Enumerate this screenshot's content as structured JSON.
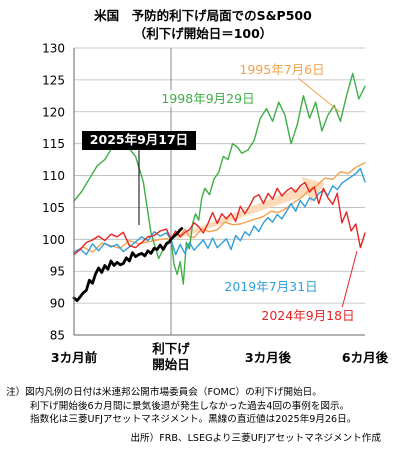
{
  "chart_data": {
    "type": "line",
    "title": "米国　予防的利下げ局面でのS&P500",
    "subtitle": "（利下げ開始日＝100）",
    "ylim": [
      85,
      130
    ],
    "yticks": [
      85,
      90,
      95,
      100,
      105,
      110,
      115,
      120,
      125,
      130
    ],
    "xlim": [
      -63,
      126
    ],
    "xticks": [
      {
        "x": -63,
        "label": "3カ月前"
      },
      {
        "x": 0,
        "label": "利下げ\n開始日"
      },
      {
        "x": 63,
        "label": "3カ月後"
      },
      {
        "x": 126,
        "label": "6カ月後"
      }
    ],
    "grid": "horizontal",
    "series": [
      {
        "name": "1995年7月6日",
        "color": "#f5a04a",
        "width": 1.4,
        "x": [
          -63,
          -57,
          -51,
          -45,
          -39,
          -33,
          -27,
          -21,
          -15,
          -9,
          -3,
          0,
          3,
          6,
          9,
          12,
          15,
          20,
          25,
          30,
          35,
          40,
          45,
          50,
          55,
          60,
          65,
          70,
          75,
          80,
          85,
          90,
          95,
          100,
          105,
          110,
          115,
          120,
          126
        ],
        "y": [
          98.0,
          98.8,
          98.0,
          99.4,
          99.0,
          98.6,
          99.8,
          99.3,
          99.6,
          99.9,
          100.1,
          100.0,
          101.2,
          100.6,
          101.6,
          100.4,
          100.3,
          101.6,
          101.2,
          101.5,
          102.7,
          102.3,
          102.4,
          102.8,
          103.2,
          103.6,
          104.4,
          104.2,
          104.9,
          105.8,
          106.6,
          107.8,
          108.5,
          109.6,
          109.4,
          110.6,
          110.3,
          111.3,
          112.0
        ]
      },
      {
        "name": "1998年9月29日",
        "color": "#3fae45",
        "width": 1.4,
        "x": [
          -63,
          -58,
          -53,
          -48,
          -43,
          -38,
          -33,
          -28,
          -23,
          -18,
          -13,
          -8,
          -3,
          0,
          2,
          4,
          6,
          8,
          10,
          12,
          14,
          16,
          18,
          20,
          22,
          25,
          28,
          31,
          34,
          37,
          40,
          43,
          46,
          50,
          54,
          58,
          62,
          66,
          70,
          74,
          78,
          82,
          86,
          90,
          94,
          98,
          102,
          106,
          110,
          114,
          118,
          122,
          126
        ],
        "y": [
          106.0,
          107.5,
          109.5,
          111.5,
          112.5,
          114.5,
          116.5,
          114.5,
          113.0,
          109.0,
          101.0,
          97.0,
          99.5,
          100.0,
          96.0,
          94.5,
          96.5,
          93.0,
          99.5,
          98.5,
          102.5,
          104.0,
          103.0,
          106.5,
          108.0,
          107.0,
          109.5,
          110.5,
          113.0,
          112.5,
          115.0,
          114.5,
          113.5,
          114.0,
          115.5,
          119.0,
          120.5,
          118.5,
          121.5,
          119.5,
          115.0,
          118.0,
          122.5,
          119.0,
          121.5,
          117.0,
          119.5,
          121.0,
          118.5,
          122.5,
          126.0,
          122.0,
          124.0
        ]
      },
      {
        "name": "2019年7月31日",
        "color": "#2e9fd8",
        "width": 1.4,
        "x": [
          -63,
          -59,
          -55,
          -51,
          -47,
          -43,
          -39,
          -35,
          -31,
          -27,
          -23,
          -19,
          -15,
          -11,
          -7,
          -3,
          0,
          3,
          6,
          9,
          12,
          15,
          18,
          21,
          24,
          27,
          30,
          33,
          36,
          39,
          42,
          45,
          48,
          51,
          54,
          57,
          60,
          63,
          66,
          69,
          72,
          75,
          78,
          81,
          84,
          87,
          90,
          93,
          96,
          99,
          102,
          105,
          108,
          111,
          114,
          117,
          120,
          123,
          126
        ],
        "y": [
          98.0,
          98.5,
          97.6,
          99.3,
          98.2,
          99.4,
          98.8,
          99.2,
          98.1,
          98.8,
          99.6,
          100.4,
          99.8,
          101.2,
          100.5,
          101.0,
          100.0,
          97.6,
          99.2,
          97.8,
          99.5,
          98.3,
          99.1,
          99.9,
          98.6,
          100.2,
          98.7,
          99.4,
          100.1,
          98.4,
          100.6,
          99.8,
          101.2,
          100.6,
          102.1,
          101.2,
          102.6,
          103.4,
          102.7,
          103.9,
          103.2,
          104.4,
          105.6,
          104.4,
          106.1,
          105.1,
          106.5,
          106.1,
          107.2,
          107.7,
          106.9,
          108.4,
          107.8,
          108.8,
          109.3,
          109.8,
          110.3,
          111.1,
          109.0
        ]
      },
      {
        "name": "2024年9月18日",
        "color": "#e52421",
        "width": 1.4,
        "x": [
          -63,
          -59,
          -55,
          -51,
          -47,
          -43,
          -39,
          -35,
          -31,
          -27,
          -23,
          -19,
          -15,
          -11,
          -7,
          -3,
          0,
          3,
          6,
          9,
          12,
          15,
          18,
          21,
          24,
          27,
          30,
          33,
          36,
          39,
          42,
          45,
          48,
          51,
          54,
          57,
          60,
          63,
          66,
          69,
          72,
          75,
          78,
          81,
          84,
          87,
          90,
          93,
          96,
          99,
          102,
          105,
          108,
          111,
          114,
          117,
          120,
          123,
          126
        ],
        "y": [
          97.6,
          98.4,
          99.5,
          99.9,
          100.5,
          99.8,
          100.8,
          100.4,
          101.1,
          99.0,
          98.7,
          99.5,
          100.4,
          100.6,
          101.3,
          101.6,
          100.0,
          101.3,
          100.4,
          101.1,
          101.5,
          102.6,
          102.0,
          101.0,
          102.5,
          104.2,
          102.5,
          104.0,
          103.2,
          104.1,
          102.8,
          105.2,
          104.0,
          105.2,
          106.6,
          107.0,
          105.6,
          107.2,
          106.3,
          108.0,
          106.8,
          107.6,
          108.1,
          107.4,
          108.4,
          108.9,
          107.4,
          108.2,
          105.6,
          108.0,
          106.5,
          105.5,
          107.2,
          102.6,
          104.3,
          101.3,
          102.4,
          98.7,
          101.0
        ]
      },
      {
        "name": "2025年9月17日",
        "color": "#000000",
        "width": 2.8,
        "x": [
          -63,
          -61,
          -59,
          -57,
          -55,
          -53,
          -51,
          -49,
          -47,
          -45,
          -43,
          -41,
          -39,
          -37,
          -35,
          -33,
          -31,
          -29,
          -27,
          -25,
          -23,
          -21,
          -19,
          -17,
          -15,
          -13,
          -11,
          -9,
          -7,
          -5,
          -3,
          -1,
          0,
          2,
          4,
          6,
          7
        ],
        "y": [
          90.8,
          90.4,
          91.0,
          91.6,
          92.0,
          93.6,
          93.1,
          94.6,
          95.5,
          94.8,
          95.9,
          95.3,
          96.6,
          95.9,
          96.4,
          96.0,
          96.2,
          97.1,
          96.6,
          97.9,
          97.3,
          97.6,
          97.8,
          97.4,
          98.2,
          97.8,
          98.6,
          98.4,
          99.1,
          98.4,
          99.3,
          99.6,
          100.0,
          100.5,
          100.9,
          101.5,
          101.7
        ]
      }
    ],
    "annotations": [
      {
        "text": "1995年7月6日",
        "color": "#f5a04a"
      },
      {
        "text": "1998年9月29日",
        "color": "#3fae45"
      },
      {
        "text": "2019年7月31日",
        "color": "#2e9fd8"
      },
      {
        "text": "2024年9月18日",
        "color": "#e52421"
      },
      {
        "text": "2025年9月17日",
        "color": "#ffffff",
        "background": "#000000"
      }
    ],
    "trend_arrow": {
      "from": [
        3,
        100.2
      ],
      "to": [
        100,
        108.8
      ],
      "color": "#fbd3b0"
    }
  },
  "notes": [
    "注）図内凡例の日付は米連邦公開市場委員会（FOMC）の利下げ開始日。",
    "利下げ開始後6カ月間に景気後退が発生しなかった過去4回の事例を図示。",
    "指数化は三菱UFJアセットマネジメント。黒線の直近値は2025年9月26日。"
  ],
  "source": "出所）FRB、LSEGより三菱UFJアセットマネジメント作成"
}
